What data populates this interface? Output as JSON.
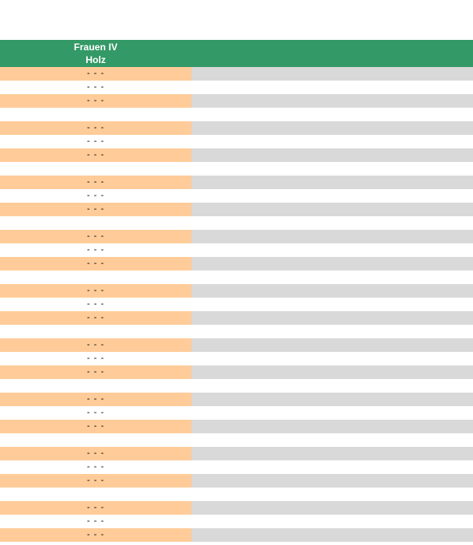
{
  "header": {
    "title": "Frauen IV\nHolz",
    "color": "#339966"
  },
  "colors": {
    "orange": "#ffcc99",
    "gray": "#d9d9d9",
    "white": "#ffffff"
  },
  "rows": [
    {
      "value": "- - -",
      "style": "shaded"
    },
    {
      "value": "- - -",
      "style": "plain"
    },
    {
      "value": "- - -",
      "style": "shaded"
    },
    {
      "value": "",
      "style": "plain"
    },
    {
      "value": "- - -",
      "style": "shaded"
    },
    {
      "value": "- - -",
      "style": "plain"
    },
    {
      "value": "- - -",
      "style": "shaded"
    },
    {
      "value": "",
      "style": "plain"
    },
    {
      "value": "- - -",
      "style": "shaded"
    },
    {
      "value": "- - -",
      "style": "plain"
    },
    {
      "value": "- - -",
      "style": "shaded"
    },
    {
      "value": "",
      "style": "plain"
    },
    {
      "value": "- - -",
      "style": "shaded"
    },
    {
      "value": "- - -",
      "style": "plain"
    },
    {
      "value": "- - -",
      "style": "shaded"
    },
    {
      "value": "",
      "style": "plain"
    },
    {
      "value": "- - -",
      "style": "shaded"
    },
    {
      "value": "- - -",
      "style": "plain"
    },
    {
      "value": "- - -",
      "style": "shaded"
    },
    {
      "value": "",
      "style": "plain"
    },
    {
      "value": "- - -",
      "style": "shaded"
    },
    {
      "value": "- - -",
      "style": "plain"
    },
    {
      "value": "- - -",
      "style": "shaded"
    },
    {
      "value": "",
      "style": "plain"
    },
    {
      "value": "- - -",
      "style": "shaded"
    },
    {
      "value": "- - -",
      "style": "plain"
    },
    {
      "value": "- - -",
      "style": "shaded"
    },
    {
      "value": "",
      "style": "plain"
    },
    {
      "value": "- - -",
      "style": "shaded"
    },
    {
      "value": "- - -",
      "style": "plain"
    },
    {
      "value": "- - -",
      "style": "shaded"
    },
    {
      "value": "",
      "style": "plain"
    },
    {
      "value": "- - -",
      "style": "shaded"
    },
    {
      "value": "- - -",
      "style": "plain"
    },
    {
      "value": "- - -",
      "style": "shaded"
    }
  ]
}
